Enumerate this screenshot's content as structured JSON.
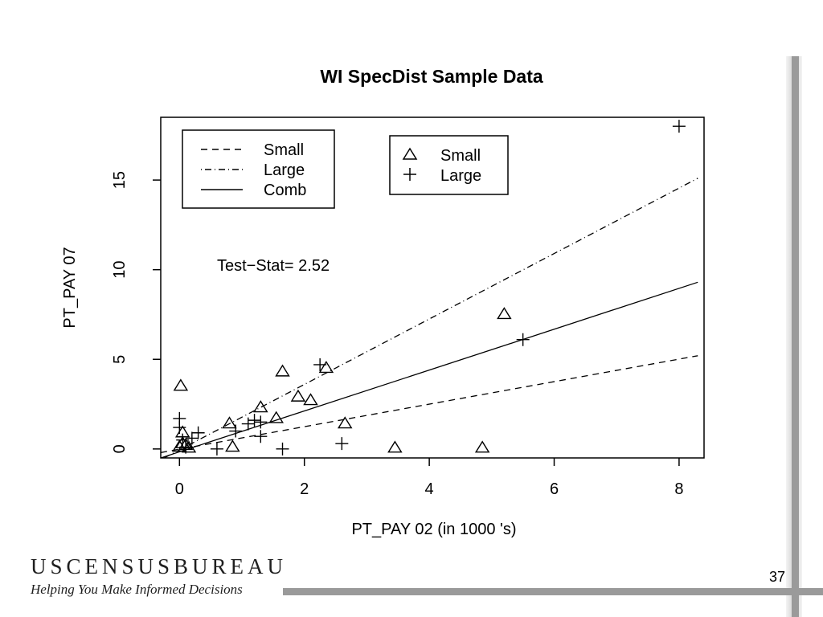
{
  "slide": {
    "brand": "USCENSUSBUREAU",
    "tagline": "Helping You Make Informed Decisions",
    "page_number": "37"
  },
  "chart_data": {
    "type": "scatter",
    "title": "WI SpecDist Sample Data",
    "xlabel": "PT_PAY 02 (in  1000 's)",
    "ylabel": "PT_PAY 07",
    "xlim": [
      -0.3,
      8.4
    ],
    "ylim": [
      -0.5,
      18.5
    ],
    "x_ticks": [
      0,
      2,
      4,
      6,
      8
    ],
    "y_ticks": [
      0,
      5,
      10,
      15
    ],
    "grid": false,
    "annotation": "Test−Stat= 2.52",
    "series": [
      {
        "name": "Small",
        "marker": "triangle",
        "points": [
          [
            0.02,
            3.5
          ],
          [
            0.0,
            0.1
          ],
          [
            0.05,
            0.3
          ],
          [
            0.1,
            0.2
          ],
          [
            0.15,
            0.05
          ],
          [
            0.05,
            0.9
          ],
          [
            0.8,
            1.4
          ],
          [
            0.85,
            0.1
          ],
          [
            1.3,
            2.3
          ],
          [
            1.55,
            1.7
          ],
          [
            1.65,
            4.3
          ],
          [
            1.9,
            2.9
          ],
          [
            2.1,
            2.7
          ],
          [
            2.35,
            4.5
          ],
          [
            2.65,
            1.4
          ],
          [
            3.45,
            0.05
          ],
          [
            4.85,
            0.05
          ],
          [
            5.2,
            7.5
          ]
        ]
      },
      {
        "name": "Large",
        "marker": "plus",
        "points": [
          [
            0.0,
            1.7
          ],
          [
            0.0,
            1.2
          ],
          [
            0.05,
            0.5
          ],
          [
            0.1,
            0.1
          ],
          [
            0.2,
            0.6
          ],
          [
            0.3,
            0.9
          ],
          [
            0.6,
            0.0
          ],
          [
            0.9,
            1.0
          ],
          [
            1.1,
            1.4
          ],
          [
            1.2,
            1.6
          ],
          [
            1.3,
            1.5
          ],
          [
            1.3,
            0.7
          ],
          [
            1.65,
            0.0
          ],
          [
            2.25,
            4.7
          ],
          [
            2.6,
            0.3
          ],
          [
            5.5,
            6.1
          ],
          [
            8.0,
            18.0
          ]
        ]
      }
    ],
    "fit_lines": [
      {
        "name": "Small",
        "style": "dashed",
        "from": [
          -0.3,
          -0.2
        ],
        "to": [
          8.3,
          5.2
        ]
      },
      {
        "name": "Large",
        "style": "dotdash",
        "from": [
          -0.3,
          -0.6
        ],
        "to": [
          8.3,
          15.1
        ]
      },
      {
        "name": "Comb",
        "style": "solid",
        "from": [
          -0.3,
          -0.5
        ],
        "to": [
          8.3,
          9.3
        ]
      }
    ],
    "legends": [
      {
        "position": "top-left",
        "entries": [
          {
            "label": "Small",
            "line": "dashed"
          },
          {
            "label": "Large",
            "line": "dotdash"
          },
          {
            "label": "Comb",
            "line": "solid"
          }
        ]
      },
      {
        "position": "top-center",
        "entries": [
          {
            "label": "Small",
            "marker": "triangle"
          },
          {
            "label": "Large",
            "marker": "plus"
          }
        ]
      }
    ]
  }
}
